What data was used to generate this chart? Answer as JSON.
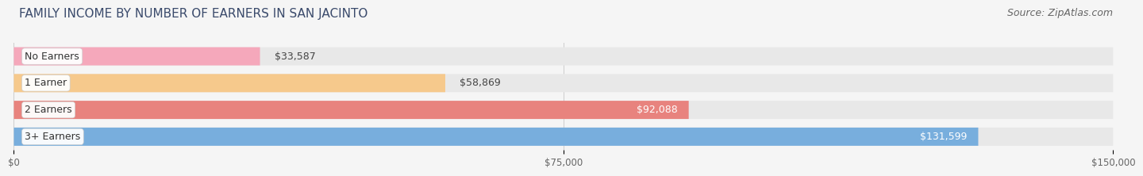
{
  "title": "FAMILY INCOME BY NUMBER OF EARNERS IN SAN JACINTO",
  "source": "Source: ZipAtlas.com",
  "categories": [
    "No Earners",
    "1 Earner",
    "2 Earners",
    "3+ Earners"
  ],
  "values": [
    33587,
    58869,
    92088,
    131599
  ],
  "bar_colors": [
    "#f5a8bb",
    "#f6c98c",
    "#e8837e",
    "#78aedd"
  ],
  "bar_bg_color": "#e8e8e8",
  "label_colors": [
    "#555555",
    "#555555",
    "#ffffff",
    "#ffffff"
  ],
  "xlim": [
    0,
    150000
  ],
  "xticks": [
    0,
    75000,
    150000
  ],
  "xticklabels": [
    "$0",
    "$75,000",
    "$150,000"
  ],
  "title_fontsize": 11,
  "source_fontsize": 9,
  "bar_label_fontsize": 9,
  "cat_label_fontsize": 9,
  "background_color": "#f5f5f5"
}
